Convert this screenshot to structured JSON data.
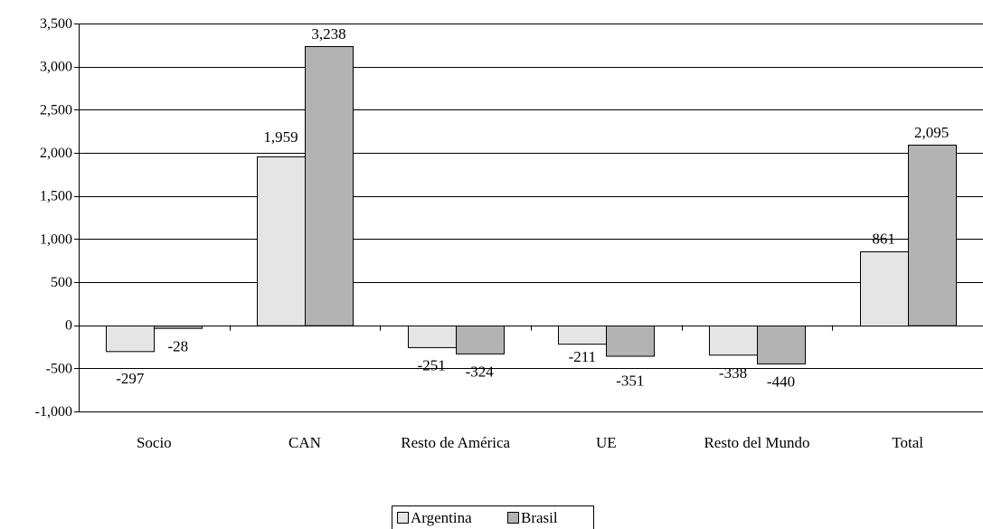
{
  "chart_data": {
    "type": "bar",
    "categories": [
      "Socio",
      "CAN",
      "Resto de América",
      "UE",
      "Resto del Mundo",
      "Total"
    ],
    "series": [
      {
        "name": "Argentina",
        "values": [
          -297,
          1959,
          -251,
          -211,
          -338,
          861
        ],
        "color": "#e5e5e5"
      },
      {
        "name": "Brasil",
        "values": [
          -28,
          3238,
          -324,
          -351,
          -440,
          2095
        ],
        "color": "#b3b3b3"
      }
    ],
    "data_labels": [
      [
        "-297",
        "1,959",
        "-251",
        "-211",
        "-338",
        "861"
      ],
      [
        "-28",
        "3,238",
        "-324",
        "-351",
        "-440",
        "2,095"
      ]
    ],
    "yticks": [
      "3,500",
      "3,000",
      "2,500",
      "2,000",
      "1,500",
      "1,000",
      "500",
      "0",
      "-500",
      "-1,000"
    ],
    "ylim": [
      -1000,
      3500
    ],
    "grid": true,
    "legend_position": "bottom-center",
    "title": "",
    "xlabel": "",
    "ylabel": ""
  }
}
